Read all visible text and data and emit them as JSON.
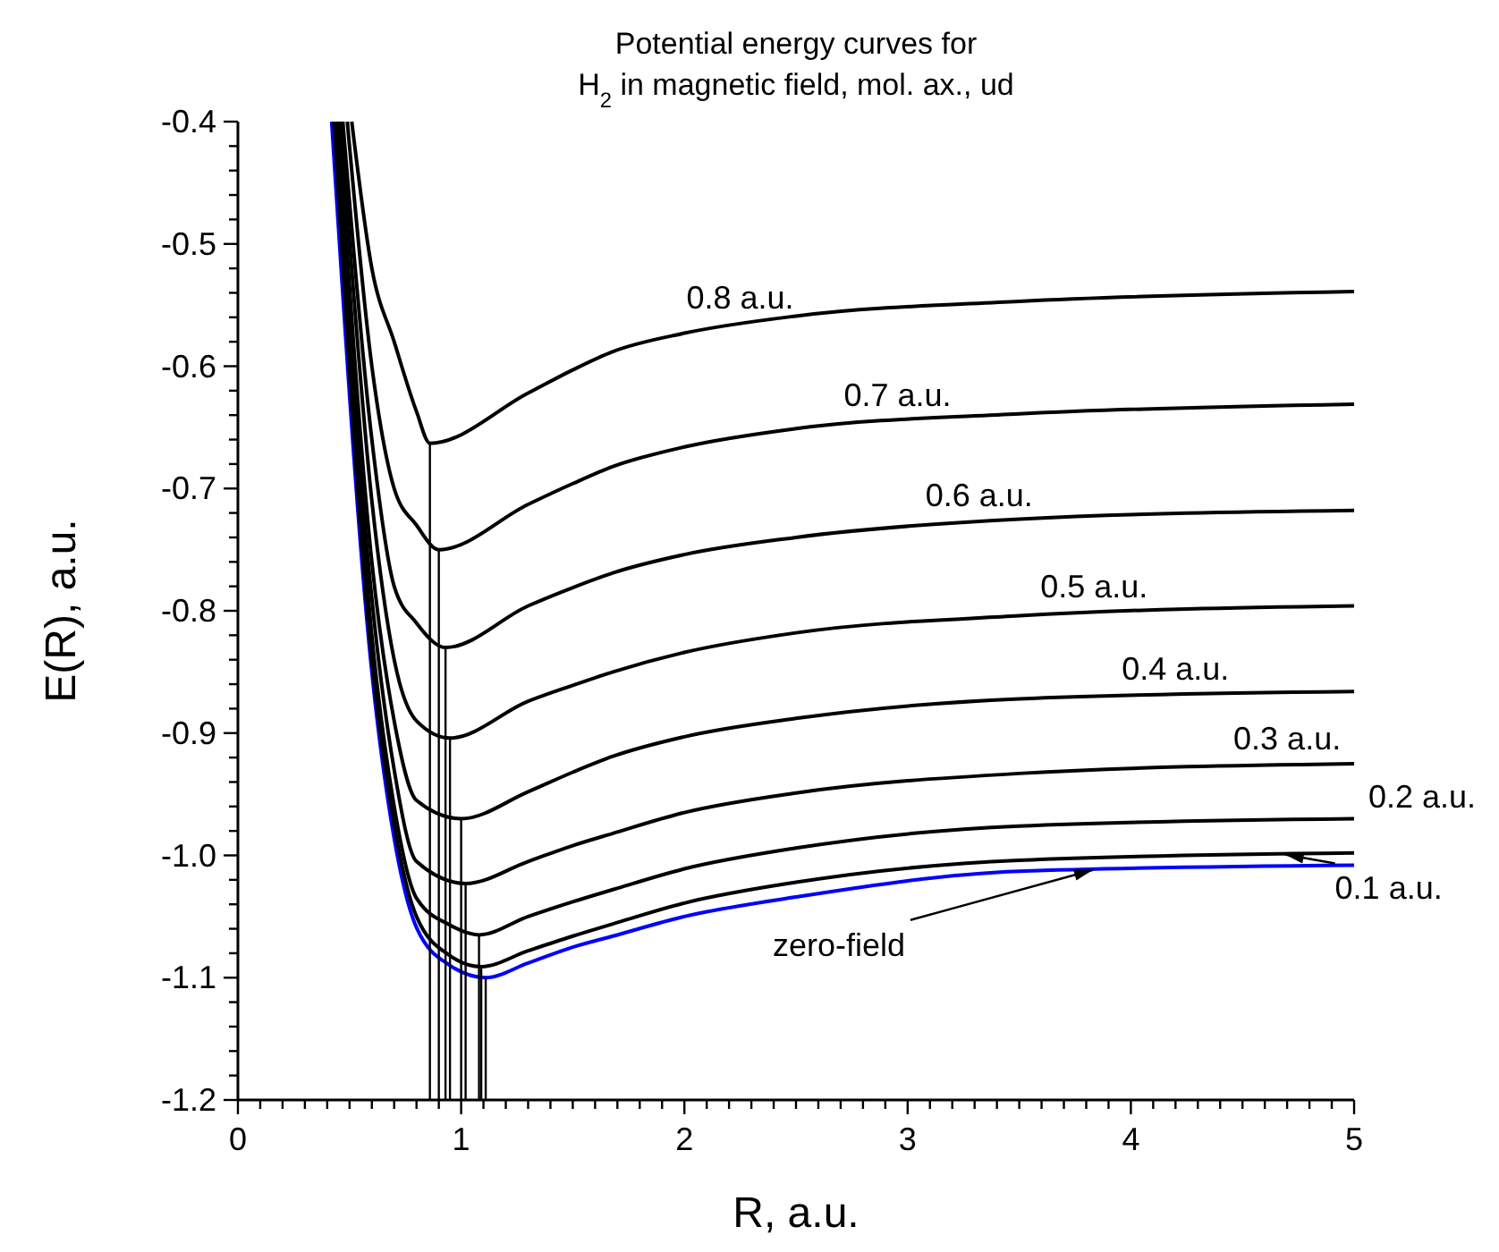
{
  "chart_data": {
    "type": "line",
    "title": "Potential energy curves for\nH$_{2}$ in magnetic field, mol. ax., ud",
    "xlabel": "R, a.u.",
    "ylabel": "E(R), a.u.",
    "xlim": [
      0,
      5
    ],
    "ylim": [
      -1.2,
      -0.4
    ],
    "xticks": [
      0,
      {
        "value": 0.1,
        "label": null
      },
      {
        "value": 0.2,
        "label": null
      },
      {
        "value": 0.3,
        "label": null
      },
      {
        "value": 0.4,
        "label": null
      },
      {
        "value": 0.5,
        "label": null
      },
      {
        "value": 0.6,
        "label": null
      },
      {
        "value": 0.7,
        "label": null
      },
      {
        "value": 0.8,
        "label": null
      },
      {
        "value": 0.9,
        "label": null
      },
      1,
      {
        "value": 1.1,
        "label": null
      },
      {
        "value": 1.2,
        "label": null
      },
      {
        "value": 1.3,
        "label": null
      },
      {
        "value": 1.4,
        "label": null
      },
      {
        "value": 1.5,
        "label": null
      },
      {
        "value": 1.6,
        "label": null
      },
      {
        "value": 1.7,
        "label": null
      },
      {
        "value": 1.8,
        "label": null
      },
      {
        "value": 1.9,
        "label": null
      },
      2,
      {
        "value": 2.1,
        "label": null
      },
      {
        "value": 2.2,
        "label": null
      },
      {
        "value": 2.3,
        "label": null
      },
      {
        "value": 2.4,
        "label": null
      },
      {
        "value": 2.5,
        "label": null
      },
      {
        "value": 2.6,
        "label": null
      },
      {
        "value": 2.7,
        "label": null
      },
      {
        "value": 2.8,
        "label": null
      },
      {
        "value": 2.9,
        "label": null
      },
      3,
      {
        "value": 3.1,
        "label": null
      },
      {
        "value": 3.2,
        "label": null
      },
      {
        "value": 3.3,
        "label": null
      },
      {
        "value": 3.4,
        "label": null
      },
      {
        "value": 3.5,
        "label": null
      },
      {
        "value": 3.6,
        "label": null
      },
      {
        "value": 3.7,
        "label": null
      },
      {
        "value": 3.8,
        "label": null
      },
      {
        "value": 3.9,
        "label": null
      },
      4,
      {
        "value": 4.1,
        "label": null
      },
      {
        "value": 4.2,
        "label": null
      },
      {
        "value": 4.3,
        "label": null
      },
      {
        "value": 4.4,
        "label": null
      },
      {
        "value": 4.5,
        "label": null
      },
      {
        "value": 4.6,
        "label": null
      },
      {
        "value": 4.7,
        "label": null
      },
      {
        "value": 4.8,
        "label": null
      },
      {
        "value": 4.9,
        "label": null
      },
      5
    ],
    "yticks": [
      -1.2,
      {
        "value": -1.18,
        "label": null
      },
      {
        "value": -1.16,
        "label": null
      },
      {
        "value": -1.14,
        "label": null
      },
      {
        "value": -1.12,
        "label": null
      },
      -1.1,
      {
        "value": -1.08,
        "label": null
      },
      {
        "value": -1.06,
        "label": null
      },
      {
        "value": -1.04,
        "label": null
      },
      {
        "value": -1.02,
        "label": null
      },
      {
        "value": -1,
        "label": "-1.0"
      },
      {
        "value": -0.98,
        "label": null
      },
      {
        "value": -0.96,
        "label": null
      },
      {
        "value": -0.94,
        "label": null
      },
      {
        "value": -0.92,
        "label": null
      },
      -0.9,
      {
        "value": -0.88,
        "label": null
      },
      {
        "value": -0.86,
        "label": null
      },
      {
        "value": -0.84,
        "label": null
      },
      {
        "value": -0.82,
        "label": null
      },
      -0.8,
      {
        "value": -0.78,
        "label": null
      },
      {
        "value": -0.76,
        "label": null
      },
      {
        "value": -0.74,
        "label": null
      },
      {
        "value": -0.72,
        "label": null
      },
      -0.7,
      {
        "value": -0.68,
        "label": null
      },
      {
        "value": -0.66,
        "label": null
      },
      {
        "value": -0.64,
        "label": null
      },
      {
        "value": -0.62,
        "label": null
      },
      -0.6,
      {
        "value": -0.58,
        "label": null
      },
      {
        "value": -0.56,
        "label": null
      },
      {
        "value": -0.54,
        "label": null
      },
      {
        "value": -0.52,
        "label": null
      },
      -0.5,
      {
        "value": -0.48,
        "label": null
      },
      {
        "value": -0.46,
        "label": null
      },
      {
        "value": -0.44,
        "label": null
      },
      {
        "value": -0.42,
        "label": null
      },
      -0.4
    ],
    "grid": false,
    "series": [
      {
        "name": "zero-field",
        "color": "#0000ff",
        "x": [
          0.42,
          0.6,
          0.7,
          0.8,
          0.95,
          1.11,
          1.3,
          1.5,
          1.68,
          2.0,
          2.5,
          3.5,
          5
        ],
        "values": [
          -0.4,
          -0.85,
          -0.986,
          -1.059,
          -1.09,
          -1.1,
          -1.088,
          -1.075,
          -1.066,
          -1.05,
          -1.034,
          -1.013,
          -1.008
        ]
      },
      {
        "name": "0.1 a.u.",
        "color": "#000000",
        "x": [
          0.43,
          0.6,
          0.7,
          0.8,
          0.95,
          1.09,
          1.3,
          1.5,
          1.68,
          2.0,
          2.5,
          3.5,
          5
        ],
        "values": [
          -0.4,
          -0.84,
          -0.975,
          -1.05,
          -1.082,
          -1.091,
          -1.078,
          -1.066,
          -1.056,
          -1.039,
          -1.022,
          -1.004,
          -0.998
        ]
      },
      {
        "name": "0.2 a.u.",
        "color": "#000000",
        "x": [
          0.44,
          0.6,
          0.7,
          0.8,
          0.95,
          1.08,
          1.3,
          1.5,
          1.68,
          2.0,
          2.5,
          3.5,
          5
        ],
        "values": [
          -0.4,
          -0.82,
          -0.96,
          -1.035,
          -1.057,
          -1.065,
          -1.05,
          -1.038,
          -1.028,
          -1.011,
          -0.994,
          -0.976,
          -0.97
        ]
      },
      {
        "name": "0.3 a.u.",
        "color": "#000000",
        "x": [
          0.44,
          0.6,
          0.7,
          0.8,
          1.02,
          1.3,
          1.5,
          1.68,
          2.0,
          2.5,
          3.5,
          5
        ],
        "values": [
          -0.4,
          -0.79,
          -0.93,
          -1.005,
          -1.023,
          -1.005,
          -0.992,
          -0.982,
          -0.965,
          -0.949,
          -0.933,
          -0.925
        ]
      },
      {
        "name": "0.4 a.u.",
        "color": "#000000",
        "x": [
          0.45,
          0.6,
          0.7,
          0.8,
          1.0,
          1.3,
          1.5,
          1.68,
          2.0,
          2.5,
          3.5,
          5
        ],
        "values": [
          -0.4,
          -0.76,
          -0.89,
          -0.955,
          -0.97,
          -0.948,
          -0.932,
          -0.919,
          -0.903,
          -0.888,
          -0.872,
          -0.866
        ]
      },
      {
        "name": "0.5 a.u.",
        "color": "#000000",
        "x": [
          0.46,
          0.6,
          0.7,
          0.8,
          0.95,
          1.3,
          1.5,
          1.68,
          2.0,
          2.5,
          3.5,
          5
        ],
        "values": [
          -0.4,
          -0.71,
          -0.84,
          -0.89,
          -0.904,
          -0.874,
          -0.861,
          -0.85,
          -0.834,
          -0.818,
          -0.804,
          -0.796
        ]
      },
      {
        "name": "0.6 a.u.",
        "color": "#000000",
        "x": [
          0.47,
          0.6,
          0.7,
          0.8,
          0.93,
          1.3,
          1.5,
          1.68,
          2.0,
          2.5,
          3.5,
          5
        ],
        "values": [
          -0.4,
          -0.66,
          -0.78,
          -0.81,
          -0.83,
          -0.796,
          -0.781,
          -0.769,
          -0.754,
          -0.74,
          -0.725,
          -0.718
        ]
      },
      {
        "name": "0.7 a.u.",
        "color": "#000000",
        "x": [
          0.49,
          0.6,
          0.7,
          0.8,
          0.9,
          1.3,
          1.5,
          1.68,
          2.0,
          2.5,
          3.5,
          5
        ],
        "values": [
          -0.4,
          -0.6,
          -0.7,
          -0.73,
          -0.75,
          -0.713,
          -0.696,
          -0.682,
          -0.666,
          -0.651,
          -0.639,
          -0.631
        ]
      },
      {
        "name": "0.8 a.u.",
        "color": "#000000",
        "x": [
          0.51,
          0.6,
          0.7,
          0.8,
          0.86,
          1.3,
          1.5,
          1.68,
          2.0,
          2.5,
          3.5,
          5
        ],
        "values": [
          -0.4,
          -0.52,
          -0.58,
          -0.637,
          -0.663,
          -0.622,
          -0.603,
          -0.588,
          -0.573,
          -0.559,
          -0.547,
          -0.539
        ]
      },
      {
        "color": "#000000",
        "x": [
          1.11,
          1.11
        ],
        "values": [
          -1.2,
          -1.1
        ]
      },
      {
        "color": "#000000",
        "x": [
          1.09,
          1.09
        ],
        "values": [
          -1.2,
          -1.091
        ]
      },
      {
        "color": "#000000",
        "x": [
          1.08,
          1.08
        ],
        "values": [
          -1.2,
          -1.065
        ]
      },
      {
        "color": "#000000",
        "x": [
          1.02,
          1.02
        ],
        "values": [
          -1.2,
          -1.023
        ]
      },
      {
        "color": "#000000",
        "x": [
          1.0,
          1.0
        ],
        "values": [
          -1.2,
          -0.97
        ]
      },
      {
        "color": "#000000",
        "x": [
          0.95,
          0.95
        ],
        "values": [
          -1.2,
          -0.904
        ]
      },
      {
        "color": "#000000",
        "x": [
          0.93,
          0.93
        ],
        "values": [
          -1.2,
          -0.83
        ]
      },
      {
        "color": "#000000",
        "x": [
          0.9,
          0.9
        ],
        "values": [
          -1.2,
          -0.75
        ]
      },
      {
        "color": "#000000",
        "x": [
          0.86,
          0.86
        ],
        "values": [
          -1.2,
          -0.663
        ]
      }
    ]
  }
}
